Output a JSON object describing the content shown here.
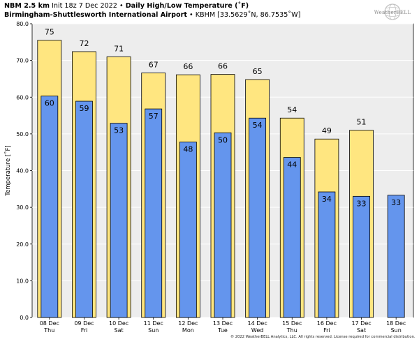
{
  "header": {
    "model": "NBM 2.5 km",
    "init": "Init 18z 7 Dec 2022",
    "separator": "•",
    "product": "Daily High/Low Temperature (˚F)",
    "station_name": "Birmingham-Shuttlesworth International Airport",
    "station_detail": "KBHM [33.5629˚N, 86.7535˚W]"
  },
  "logo": {
    "text": "WeatherBELL",
    "icon": "weatherbell-globe-logo"
  },
  "copyright": "© 2022 WeatherBELL Analytics, LLC. All rights reserved. License required for commercial distribution.",
  "colors": {
    "high": "#FFE680",
    "low": "#6495ED",
    "plot_bg": "#EDEDED",
    "grid": "#FFFFFF"
  },
  "chart_data": {
    "type": "bar",
    "ylabel": "Temperature [˚F]",
    "ylim": [
      0,
      80
    ],
    "yticks": [
      "0.0",
      "10.0",
      "20.0",
      "30.0",
      "40.0",
      "50.0",
      "60.0",
      "70.0",
      "80.0"
    ],
    "grid": true,
    "categories": [
      {
        "date": "08 Dec",
        "day": "Thu"
      },
      {
        "date": "09 Dec",
        "day": "Fri"
      },
      {
        "date": "10 Dec",
        "day": "Sat"
      },
      {
        "date": "11 Dec",
        "day": "Sun"
      },
      {
        "date": "12 Dec",
        "day": "Mon"
      },
      {
        "date": "13 Dec",
        "day": "Tue"
      },
      {
        "date": "14 Dec",
        "day": "Wed"
      },
      {
        "date": "15 Dec",
        "day": "Thu"
      },
      {
        "date": "16 Dec",
        "day": "Fri"
      },
      {
        "date": "17 Dec",
        "day": "Sat"
      },
      {
        "date": "18 Dec",
        "day": "Sun"
      }
    ],
    "series": [
      {
        "values": [
          75.5,
          72.4,
          71.0,
          66.6,
          66.1,
          66.2,
          64.8,
          54.3,
          48.6,
          51.0,
          null
        ],
        "labels": [
          "75",
          "72",
          "71",
          "67",
          "66",
          "66",
          "65",
          "54",
          "49",
          "51",
          ""
        ]
      },
      {
        "values": [
          60.3,
          58.9,
          52.9,
          56.8,
          47.8,
          50.3,
          54.3,
          43.6,
          34.2,
          33.0,
          33.3
        ],
        "labels": [
          "60",
          "59",
          "53",
          "57",
          "48",
          "50",
          "54",
          "44",
          "34",
          "33",
          "33"
        ]
      }
    ]
  }
}
